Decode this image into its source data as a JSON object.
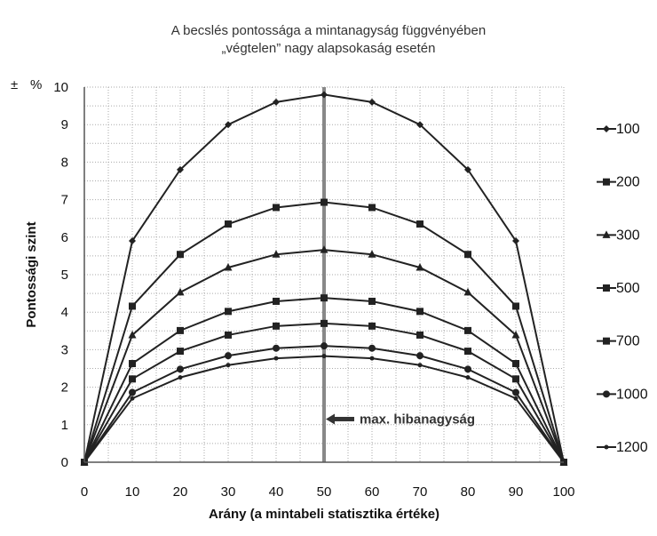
{
  "chart_data": {
    "type": "line",
    "title_line1": "A becslés pontossága a mintanagyság függvényében",
    "title_line2": "„végtelen” nagy alapsokaság esetén",
    "unit_label_left": "±",
    "unit_label_right": "%",
    "xlabel": "Arány (a mintabeli statisztika értéke)",
    "ylabel": "Pontossági szint",
    "x": [
      0,
      10,
      20,
      30,
      40,
      50,
      60,
      70,
      80,
      90,
      100
    ],
    "xlim": [
      0,
      100
    ],
    "ylim": [
      0,
      10
    ],
    "xticks": [
      0,
      10,
      20,
      30,
      40,
      50,
      60,
      70,
      80,
      90,
      100
    ],
    "yticks": [
      0,
      1,
      2,
      3,
      4,
      5,
      6,
      7,
      8,
      9,
      10
    ],
    "grid": true,
    "legend_position": "right",
    "series": [
      {
        "name": "100",
        "marker": "diamond",
        "values": [
          0,
          5.9,
          7.8,
          9.0,
          9.6,
          9.8,
          9.6,
          9.0,
          7.8,
          5.9,
          0
        ]
      },
      {
        "name": "200",
        "marker": "square",
        "values": [
          0,
          4.16,
          5.54,
          6.35,
          6.79,
          6.93,
          6.79,
          6.35,
          5.54,
          4.16,
          0
        ]
      },
      {
        "name": "300",
        "marker": "triangle",
        "values": [
          0,
          3.39,
          4.53,
          5.19,
          5.54,
          5.66,
          5.54,
          5.19,
          4.53,
          3.39,
          0
        ]
      },
      {
        "name": "500",
        "marker": "square",
        "values": [
          0,
          2.63,
          3.51,
          4.02,
          4.29,
          4.38,
          4.29,
          4.02,
          3.51,
          2.63,
          0
        ]
      },
      {
        "name": "700",
        "marker": "square",
        "values": [
          0,
          2.22,
          2.96,
          3.39,
          3.63,
          3.7,
          3.63,
          3.39,
          2.96,
          2.22,
          0
        ]
      },
      {
        "name": "1000",
        "marker": "circle",
        "values": [
          0,
          1.86,
          2.48,
          2.84,
          3.04,
          3.1,
          3.04,
          2.84,
          2.48,
          1.86,
          0
        ]
      },
      {
        "name": "1200",
        "marker": "dot",
        "values": [
          0,
          1.7,
          2.26,
          2.59,
          2.77,
          2.83,
          2.77,
          2.59,
          2.26,
          1.7,
          0
        ]
      }
    ],
    "vertical_line_x": 50,
    "annotation": {
      "text": "max. hibanagyság",
      "x": 50,
      "y": 1.15
    }
  },
  "colors": {
    "line": "#222222",
    "grid": "#aaaaaa",
    "vertical_line": "#888888"
  }
}
